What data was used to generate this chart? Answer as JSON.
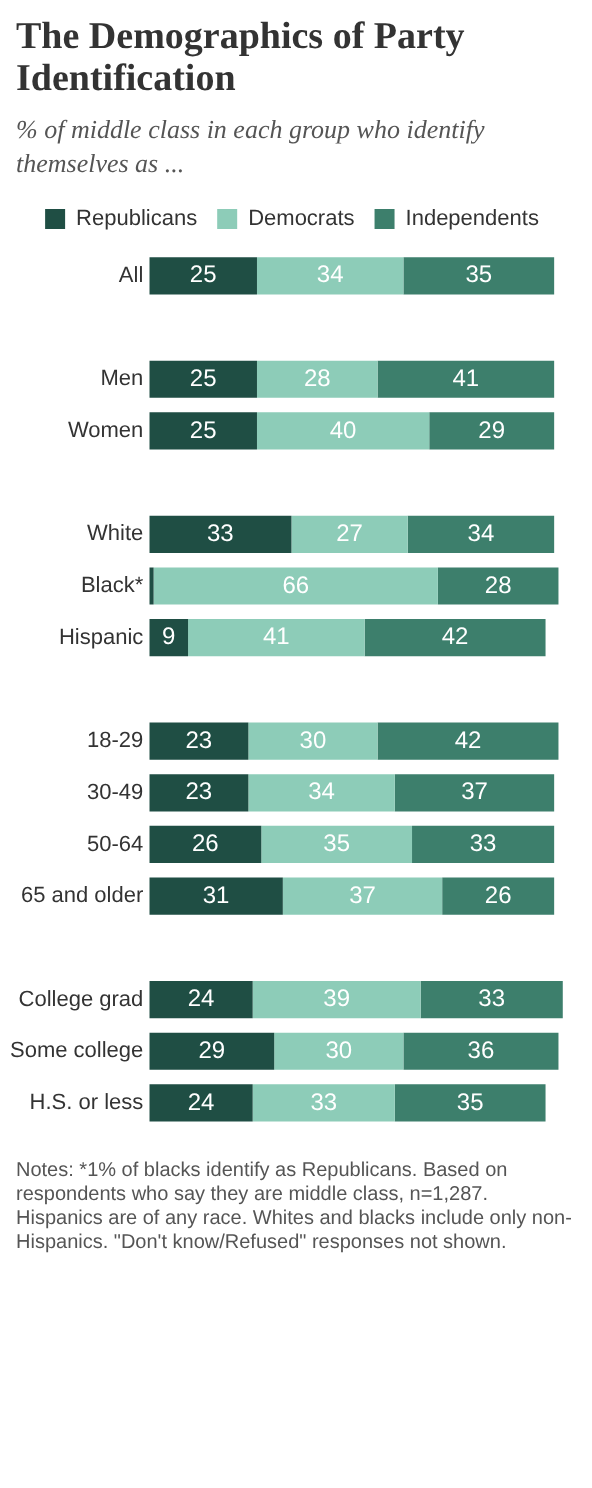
{
  "chart_data": {
    "type": "bar",
    "orientation": "horizontal",
    "stacked": true,
    "title": "The Demographics of Party Identification",
    "subtitle": "% of middle class in each group who identify themselves as ...",
    "categories": [
      "All",
      null,
      "Men",
      "Women",
      null,
      "White",
      "Black*",
      "Hispanic",
      null,
      "18-29",
      "30-49",
      "50-64",
      "65 and older",
      null,
      "College grad",
      "Some college",
      "H.S. or less"
    ],
    "series": [
      {
        "name": "Republicans",
        "color": "#1f4e44",
        "values": [
          25,
          null,
          25,
          25,
          null,
          33,
          1,
          9,
          null,
          23,
          23,
          26,
          31,
          null,
          24,
          29,
          24
        ],
        "value_labels": [
          "25",
          null,
          "25",
          "25",
          null,
          "33",
          null,
          "9",
          null,
          "23",
          "23",
          "26",
          "31",
          null,
          "24",
          "29",
          "24"
        ]
      },
      {
        "name": "Democrats",
        "color": "#8dccb8",
        "values": [
          34,
          null,
          28,
          40,
          null,
          27,
          66,
          41,
          null,
          30,
          34,
          35,
          37,
          null,
          39,
          30,
          33
        ],
        "value_labels": [
          "34",
          null,
          "28",
          "40",
          null,
          "27",
          "66",
          "41",
          null,
          "30",
          "34",
          "35",
          "37",
          null,
          "39",
          "30",
          "33"
        ]
      },
      {
        "name": "Independents",
        "color": "#3d7f6c",
        "values": [
          35,
          null,
          41,
          29,
          null,
          34,
          28,
          42,
          null,
          42,
          37,
          33,
          26,
          null,
          33,
          36,
          35
        ],
        "value_labels": [
          "35",
          null,
          "41",
          "29",
          null,
          "34",
          "28",
          "42",
          null,
          "42",
          "37",
          "33",
          "26",
          null,
          "33",
          "36",
          "35"
        ]
      }
    ],
    "grid": false,
    "legend": "top",
    "annotations": [
      "Notes: *1% of blacks identify as Republicans. Based on respondents who say they are middle class, n=1,287. Hispanics are of any race. Whites and blacks include only non-Hispanics. \"Don't know/Refused\" responses not shown."
    ]
  }
}
